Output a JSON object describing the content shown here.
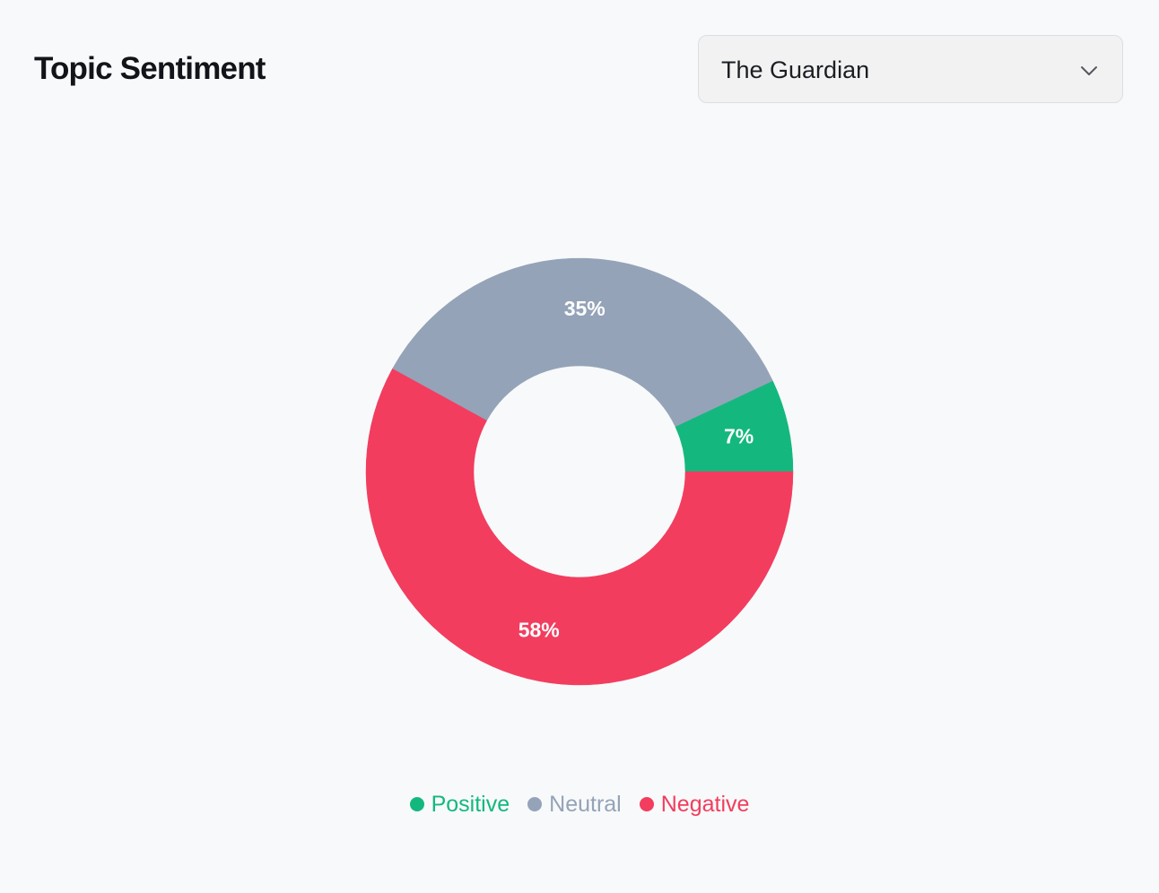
{
  "header": {
    "title": "Topic Sentiment"
  },
  "source_select": {
    "value": "The Guardian",
    "icon": "chevron-down-icon"
  },
  "colors": {
    "positive": "#14b87e",
    "neutral": "#94a3b8",
    "negative": "#f23d5f",
    "label": "#ffffff"
  },
  "chart_data": {
    "type": "pie",
    "variant": "donut",
    "title": "",
    "categories": [
      "Positive",
      "Neutral",
      "Negative"
    ],
    "values": [
      7,
      35,
      58
    ],
    "labels": [
      "7%",
      "35%",
      "58%"
    ],
    "colors": [
      "#14b87e",
      "#94a3b8",
      "#f23d5f"
    ],
    "legend": "bottom-center",
    "start_angle": "3 o'clock, counter-clockwise"
  },
  "legend": {
    "items": [
      {
        "label": "Positive",
        "color": "#14b87e"
      },
      {
        "label": "Neutral",
        "color": "#94a3b8"
      },
      {
        "label": "Negative",
        "color": "#f23d5f"
      }
    ]
  }
}
